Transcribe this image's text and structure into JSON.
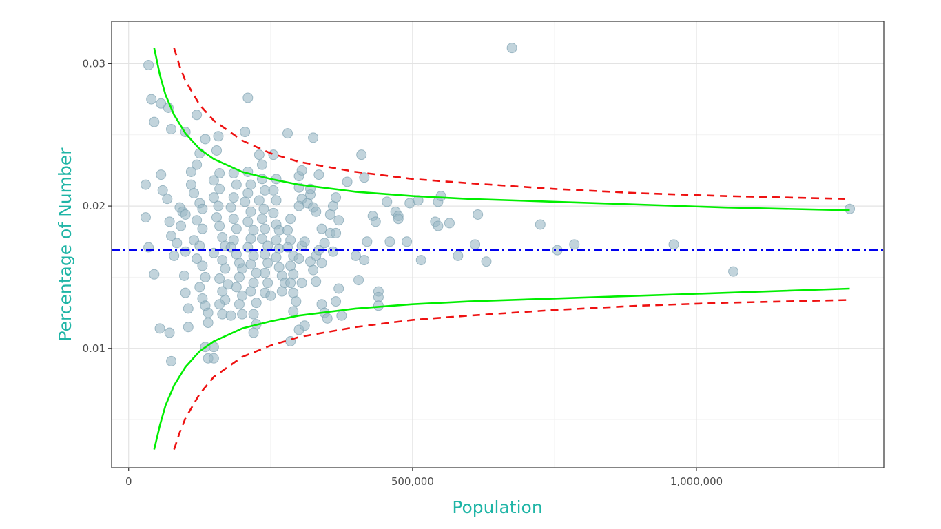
{
  "chart_data": {
    "type": "scatter",
    "title": "",
    "xlabel": "Population",
    "ylabel": "Percentage of Number",
    "xlim": [
      -30000,
      1330000
    ],
    "ylim": [
      0.00162,
      0.03297
    ],
    "grid": true,
    "legend": "none",
    "colors": {
      "axis_title": "#1fb5a6",
      "points": "#9ab8c4",
      "points_edge": "#7fa3b2",
      "mean_line": "#0000ee",
      "inner_limits": "#00ee00",
      "outer_limits": "#ee1111"
    },
    "xticks": [
      {
        "value": 0,
        "label": "0"
      },
      {
        "value": 500000,
        "label": "500,000"
      },
      {
        "value": 1000000,
        "label": "1,000,000"
      }
    ],
    "yticks": [
      {
        "value": 0.01,
        "label": "0.01"
      },
      {
        "value": 0.02,
        "label": "0.02"
      },
      {
        "value": 0.03,
        "label": "0.03"
      }
    ],
    "mean": 0.0169,
    "limit_x": [
      45000,
      55000,
      65000,
      80000,
      100000,
      125000,
      150000,
      200000,
      250000,
      300000,
      400000,
      500000,
      600000,
      750000,
      900000,
      1050000,
      1270000
    ],
    "upper_inner": [
      0.0311,
      0.0292,
      0.0278,
      0.0264,
      0.0251,
      0.024,
      0.0233,
      0.0224,
      0.0219,
      0.0215,
      0.021,
      0.0207,
      0.0205,
      0.0203,
      0.0201,
      0.0199,
      0.0197
    ],
    "lower_inner": [
      0.0029,
      0.0046,
      0.006,
      0.0074,
      0.0087,
      0.0098,
      0.0105,
      0.0114,
      0.0119,
      0.0123,
      0.0128,
      0.0131,
      0.0133,
      0.0135,
      0.0137,
      0.0139,
      0.0142
    ],
    "upper_outer_x": [
      80000,
      90000,
      100000,
      125000,
      150000,
      200000,
      250000,
      300000,
      400000,
      500000,
      600000,
      750000,
      900000,
      1050000,
      1270000
    ],
    "upper_outer": [
      0.0311,
      0.0298,
      0.0288,
      0.0271,
      0.026,
      0.0246,
      0.0237,
      0.0231,
      0.0224,
      0.0219,
      0.0216,
      0.0212,
      0.0209,
      0.0207,
      0.0205
    ],
    "lower_outer_x": [
      80000,
      90000,
      100000,
      125000,
      150000,
      200000,
      250000,
      300000,
      400000,
      500000,
      600000,
      750000,
      900000,
      1050000,
      1270000
    ],
    "lower_outer": [
      0.0029,
      0.0041,
      0.0051,
      0.0068,
      0.008,
      0.0094,
      0.0102,
      0.0108,
      0.0115,
      0.012,
      0.0123,
      0.0127,
      0.013,
      0.0132,
      0.0134
    ],
    "points": [
      [
        35000,
        0.0299
      ],
      [
        40000,
        0.0275
      ],
      [
        45000,
        0.0259
      ],
      [
        57000,
        0.0272
      ],
      [
        70000,
        0.0269
      ],
      [
        75000,
        0.0254
      ],
      [
        30000,
        0.0215
      ],
      [
        30000,
        0.0192
      ],
      [
        35000,
        0.0171
      ],
      [
        45000,
        0.0152
      ],
      [
        55000,
        0.0114
      ],
      [
        72000,
        0.0111
      ],
      [
        75000,
        0.0091
      ],
      [
        57000,
        0.0222
      ],
      [
        60000,
        0.0211
      ],
      [
        68000,
        0.0205
      ],
      [
        72000,
        0.0189
      ],
      [
        75000,
        0.0179
      ],
      [
        80000,
        0.0165
      ],
      [
        85000,
        0.0174
      ],
      [
        90000,
        0.0199
      ],
      [
        95000,
        0.0196
      ],
      [
        100000,
        0.0194
      ],
      [
        92000,
        0.0186
      ],
      [
        100000,
        0.0168
      ],
      [
        98000,
        0.0151
      ],
      [
        100000,
        0.0139
      ],
      [
        105000,
        0.0128
      ],
      [
        105000,
        0.0115
      ],
      [
        100000,
        0.0252
      ],
      [
        120000,
        0.0264
      ],
      [
        135000,
        0.0247
      ],
      [
        125000,
        0.0237
      ],
      [
        120000,
        0.0229
      ],
      [
        110000,
        0.0224
      ],
      [
        110000,
        0.0215
      ],
      [
        115000,
        0.0209
      ],
      [
        125000,
        0.0202
      ],
      [
        130000,
        0.0198
      ],
      [
        120000,
        0.019
      ],
      [
        130000,
        0.0184
      ],
      [
        115000,
        0.0176
      ],
      [
        125000,
        0.0172
      ],
      [
        120000,
        0.0163
      ],
      [
        130000,
        0.0158
      ],
      [
        135000,
        0.015
      ],
      [
        125000,
        0.0143
      ],
      [
        130000,
        0.0135
      ],
      [
        135000,
        0.013
      ],
      [
        140000,
        0.0125
      ],
      [
        140000,
        0.0118
      ],
      [
        135000,
        0.0101
      ],
      [
        140000,
        0.0093
      ],
      [
        150000,
        0.0093
      ],
      [
        150000,
        0.0101
      ],
      [
        155000,
        0.0239
      ],
      [
        158000,
        0.0249
      ],
      [
        160000,
        0.0223
      ],
      [
        150000,
        0.0218
      ],
      [
        160000,
        0.0212
      ],
      [
        150000,
        0.0206
      ],
      [
        158000,
        0.02
      ],
      [
        155000,
        0.0192
      ],
      [
        160000,
        0.0186
      ],
      [
        165000,
        0.0178
      ],
      [
        170000,
        0.0172
      ],
      [
        150000,
        0.0167
      ],
      [
        165000,
        0.0162
      ],
      [
        170000,
        0.0156
      ],
      [
        160000,
        0.0149
      ],
      [
        175000,
        0.0145
      ],
      [
        165000,
        0.014
      ],
      [
        170000,
        0.0134
      ],
      [
        160000,
        0.0131
      ],
      [
        165000,
        0.0124
      ],
      [
        180000,
        0.0123
      ],
      [
        185000,
        0.0223
      ],
      [
        190000,
        0.0215
      ],
      [
        185000,
        0.0206
      ],
      [
        180000,
        0.0199
      ],
      [
        185000,
        0.0191
      ],
      [
        190000,
        0.0184
      ],
      [
        185000,
        0.0176
      ],
      [
        180000,
        0.0171
      ],
      [
        190000,
        0.0166
      ],
      [
        195000,
        0.016
      ],
      [
        200000,
        0.0156
      ],
      [
        195000,
        0.015
      ],
      [
        190000,
        0.0143
      ],
      [
        200000,
        0.0137
      ],
      [
        195000,
        0.0131
      ],
      [
        200000,
        0.0124
      ],
      [
        210000,
        0.0276
      ],
      [
        205000,
        0.0252
      ],
      [
        210000,
        0.0224
      ],
      [
        215000,
        0.0215
      ],
      [
        210000,
        0.0209
      ],
      [
        205000,
        0.0203
      ],
      [
        215000,
        0.0196
      ],
      [
        210000,
        0.0189
      ],
      [
        220000,
        0.0183
      ],
      [
        215000,
        0.0177
      ],
      [
        210000,
        0.0171
      ],
      [
        220000,
        0.0165
      ],
      [
        215000,
        0.0159
      ],
      [
        225000,
        0.0153
      ],
      [
        220000,
        0.0146
      ],
      [
        215000,
        0.014
      ],
      [
        225000,
        0.0132
      ],
      [
        220000,
        0.0124
      ],
      [
        225000,
        0.0117
      ],
      [
        220000,
        0.0111
      ],
      [
        230000,
        0.0236
      ],
      [
        235000,
        0.0229
      ],
      [
        235000,
        0.0219
      ],
      [
        240000,
        0.0211
      ],
      [
        230000,
        0.0204
      ],
      [
        238000,
        0.0198
      ],
      [
        235000,
        0.0191
      ],
      [
        240000,
        0.0184
      ],
      [
        235000,
        0.0177
      ],
      [
        245000,
        0.0172
      ],
      [
        240000,
        0.0166
      ],
      [
        245000,
        0.016
      ],
      [
        240000,
        0.0153
      ],
      [
        245000,
        0.0146
      ],
      [
        240000,
        0.0139
      ],
      [
        250000,
        0.0137
      ],
      [
        255000,
        0.0236
      ],
      [
        260000,
        0.0219
      ],
      [
        255000,
        0.0211
      ],
      [
        260000,
        0.0204
      ],
      [
        255000,
        0.0195
      ],
      [
        260000,
        0.0187
      ],
      [
        265000,
        0.0183
      ],
      [
        260000,
        0.0176
      ],
      [
        265000,
        0.017
      ],
      [
        260000,
        0.0164
      ],
      [
        265000,
        0.0157
      ],
      [
        270000,
        0.0151
      ],
      [
        275000,
        0.0146
      ],
      [
        270000,
        0.014
      ],
      [
        280000,
        0.0251
      ],
      [
        285000,
        0.0191
      ],
      [
        280000,
        0.0183
      ],
      [
        285000,
        0.0176
      ],
      [
        280000,
        0.0171
      ],
      [
        290000,
        0.0165
      ],
      [
        285000,
        0.0158
      ],
      [
        290000,
        0.0152
      ],
      [
        285000,
        0.0146
      ],
      [
        290000,
        0.0139
      ],
      [
        295000,
        0.0133
      ],
      [
        290000,
        0.0126
      ],
      [
        285000,
        0.0105
      ],
      [
        300000,
        0.0221
      ],
      [
        305000,
        0.0225
      ],
      [
        300000,
        0.0213
      ],
      [
        305000,
        0.0205
      ],
      [
        300000,
        0.02
      ],
      [
        305000,
        0.0172
      ],
      [
        310000,
        0.0175
      ],
      [
        300000,
        0.0163
      ],
      [
        305000,
        0.0146
      ],
      [
        300000,
        0.0113
      ],
      [
        310000,
        0.0116
      ],
      [
        315000,
        0.0202
      ],
      [
        320000,
        0.0208
      ],
      [
        325000,
        0.0248
      ],
      [
        320000,
        0.0212
      ],
      [
        325000,
        0.0199
      ],
      [
        330000,
        0.0196
      ],
      [
        335000,
        0.0222
      ],
      [
        340000,
        0.0184
      ],
      [
        320000,
        0.0161
      ],
      [
        330000,
        0.0165
      ],
      [
        325000,
        0.0155
      ],
      [
        330000,
        0.0147
      ],
      [
        335000,
        0.0169
      ],
      [
        340000,
        0.016
      ],
      [
        345000,
        0.0174
      ],
      [
        340000,
        0.0131
      ],
      [
        345000,
        0.0125
      ],
      [
        350000,
        0.0121
      ],
      [
        355000,
        0.0194
      ],
      [
        355000,
        0.0181
      ],
      [
        360000,
        0.02
      ],
      [
        365000,
        0.0206
      ],
      [
        360000,
        0.0168
      ],
      [
        365000,
        0.0181
      ],
      [
        370000,
        0.0142
      ],
      [
        365000,
        0.0133
      ],
      [
        375000,
        0.0123
      ],
      [
        370000,
        0.019
      ],
      [
        385000,
        0.0217
      ],
      [
        400000,
        0.0165
      ],
      [
        405000,
        0.0148
      ],
      [
        410000,
        0.0236
      ],
      [
        415000,
        0.022
      ],
      [
        420000,
        0.0175
      ],
      [
        430000,
        0.0193
      ],
      [
        435000,
        0.0189
      ],
      [
        415000,
        0.0162
      ],
      [
        440000,
        0.014
      ],
      [
        440000,
        0.0136
      ],
      [
        440000,
        0.013
      ],
      [
        455000,
        0.0203
      ],
      [
        460000,
        0.0175
      ],
      [
        470000,
        0.0196
      ],
      [
        475000,
        0.0193
      ],
      [
        475000,
        0.0191
      ],
      [
        490000,
        0.0175
      ],
      [
        495000,
        0.0202
      ],
      [
        510000,
        0.0204
      ],
      [
        515000,
        0.0162
      ],
      [
        540000,
        0.0189
      ],
      [
        545000,
        0.0186
      ],
      [
        545000,
        0.0203
      ],
      [
        550000,
        0.0207
      ],
      [
        565000,
        0.0188
      ],
      [
        580000,
        0.0165
      ],
      [
        610000,
        0.0173
      ],
      [
        615000,
        0.0194
      ],
      [
        630000,
        0.0161
      ],
      [
        675000,
        0.0311
      ],
      [
        725000,
        0.0187
      ],
      [
        755000,
        0.0169
      ],
      [
        785000,
        0.0173
      ],
      [
        960000,
        0.0173
      ],
      [
        1065000,
        0.0154
      ],
      [
        1270000,
        0.0198
      ]
    ]
  }
}
